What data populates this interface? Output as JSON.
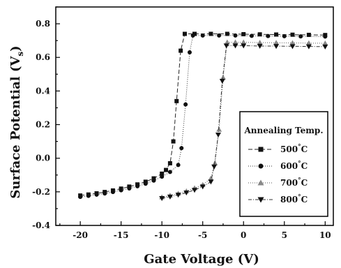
{
  "chart_data": {
    "type": "scatter",
    "xlabel": "Gate Voltage (V)",
    "ylabel_main": "Surface Potential (V",
    "ylabel_sub": "s",
    "ylabel_close": ")",
    "xlim": [
      -23,
      11
    ],
    "ylim": [
      -0.4,
      0.9
    ],
    "xticks": [
      -20,
      -15,
      -10,
      -5,
      0,
      5,
      10
    ],
    "yticks": [
      -0.4,
      -0.2,
      0.0,
      0.2,
      0.4,
      0.6,
      0.8
    ],
    "ytick_labels": [
      "-0.4",
      "-0.2",
      "0.0",
      "0.2",
      "0.4",
      "0.6",
      "0.8"
    ],
    "grid": false,
    "legend": {
      "title": "Annealing Temp.",
      "position": "right",
      "items": [
        {
          "value": "500",
          "unit": "°C"
        },
        {
          "value": "600",
          "unit": "°C"
        },
        {
          "value": "700",
          "unit": "°C"
        },
        {
          "value": "800",
          "unit": "°C"
        }
      ]
    },
    "series": [
      {
        "name": "500°C",
        "marker": "square",
        "points": [
          [
            -20,
            -0.222
          ],
          [
            -19,
            -0.216
          ],
          [
            -18,
            -0.209
          ],
          [
            -17,
            -0.201
          ],
          [
            -16,
            -0.192
          ],
          [
            -15,
            -0.181
          ],
          [
            -14,
            -0.169
          ],
          [
            -13,
            -0.156
          ],
          [
            -12,
            -0.14
          ],
          [
            -11,
            -0.12
          ],
          [
            -10,
            -0.092
          ],
          [
            -9.5,
            -0.07
          ],
          [
            -9,
            -0.03
          ],
          [
            -8.6,
            0.1
          ],
          [
            -8.2,
            0.34
          ],
          [
            -7.7,
            0.64
          ],
          [
            -7.2,
            0.74
          ],
          [
            -6,
            0.74
          ],
          [
            -4,
            0.74
          ],
          [
            -2,
            0.74
          ],
          [
            0,
            0.738
          ],
          [
            2,
            0.737
          ],
          [
            4,
            0.736
          ],
          [
            6,
            0.735
          ],
          [
            8,
            0.734
          ],
          [
            10,
            0.733
          ]
        ]
      },
      {
        "name": "600°C",
        "marker": "circle",
        "points": [
          [
            -20,
            -0.23
          ],
          [
            -19,
            -0.224
          ],
          [
            -18,
            -0.217
          ],
          [
            -17,
            -0.21
          ],
          [
            -16,
            -0.201
          ],
          [
            -15,
            -0.191
          ],
          [
            -14,
            -0.18
          ],
          [
            -13,
            -0.167
          ],
          [
            -12,
            -0.152
          ],
          [
            -11,
            -0.133
          ],
          [
            -10,
            -0.11
          ],
          [
            -9,
            -0.082
          ],
          [
            -8,
            -0.04
          ],
          [
            -7.6,
            0.06
          ],
          [
            -7.1,
            0.32
          ],
          [
            -6.6,
            0.63
          ],
          [
            -6.2,
            0.73
          ],
          [
            -5,
            0.73
          ],
          [
            -3,
            0.73
          ],
          [
            -1,
            0.73
          ],
          [
            1,
            0.728
          ],
          [
            3,
            0.727
          ],
          [
            5,
            0.726
          ],
          [
            7,
            0.725
          ],
          [
            10,
            0.724
          ]
        ]
      },
      {
        "name": "700°C",
        "marker": "triangle-up",
        "points": [
          [
            -10,
            -0.232
          ],
          [
            -9,
            -0.222
          ],
          [
            -8,
            -0.21
          ],
          [
            -7,
            -0.196
          ],
          [
            -6,
            -0.178
          ],
          [
            -5,
            -0.158
          ],
          [
            -4,
            -0.12
          ],
          [
            -3.5,
            -0.03
          ],
          [
            -3,
            0.17
          ],
          [
            -2.5,
            0.48
          ],
          [
            -2,
            0.69
          ],
          [
            -1,
            0.69
          ],
          [
            0,
            0.69
          ],
          [
            2,
            0.688
          ],
          [
            4,
            0.687
          ],
          [
            6,
            0.686
          ],
          [
            8,
            0.685
          ],
          [
            10,
            0.684
          ]
        ]
      },
      {
        "name": "800°C",
        "marker": "triangle-down",
        "points": [
          [
            -10,
            -0.238
          ],
          [
            -9,
            -0.229
          ],
          [
            -8,
            -0.218
          ],
          [
            -7,
            -0.205
          ],
          [
            -6,
            -0.189
          ],
          [
            -5,
            -0.169
          ],
          [
            -4,
            -0.14
          ],
          [
            -3.6,
            -0.05
          ],
          [
            -3.1,
            0.14
          ],
          [
            -2.6,
            0.46
          ],
          [
            -2.1,
            0.67
          ],
          [
            -1,
            0.67
          ],
          [
            0,
            0.67
          ],
          [
            2,
            0.668
          ],
          [
            4,
            0.667
          ],
          [
            6,
            0.666
          ],
          [
            8,
            0.665
          ],
          [
            10,
            0.664
          ]
        ]
      }
    ]
  }
}
